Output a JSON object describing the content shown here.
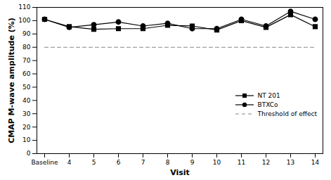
{
  "chart_data": {
    "type": "line",
    "x_label": "Visit",
    "y_label": "CMAP M-wave amplitude (%)",
    "categories": [
      "Baseline",
      "4",
      "5",
      "6",
      "7",
      "8",
      "9",
      "10",
      "11",
      "12",
      "13",
      "14"
    ],
    "series": [
      {
        "name": "NT 201",
        "color": "#000000",
        "marker": "square",
        "line_style": "solid",
        "values": [
          101,
          95.5,
          93.5,
          94,
          94,
          96.5,
          96,
          93,
          100,
          95,
          104.5,
          95.5
        ]
      },
      {
        "name": "BTXCo",
        "color": "#000000",
        "marker": "circle",
        "line_style": "solid",
        "values": [
          101,
          95,
          97,
          99,
          96,
          98,
          94,
          94,
          101,
          96,
          107,
          101
        ]
      },
      {
        "name": "Threshold of effect",
        "color": "#888888",
        "marker": "none",
        "line_style": "dashed",
        "values": [
          80,
          80,
          80,
          80,
          80,
          80,
          80,
          80,
          80,
          80,
          80,
          80
        ]
      }
    ],
    "ylim": [
      0,
      110
    ],
    "yticks": [
      0,
      10,
      20,
      30,
      40,
      50,
      60,
      70,
      80,
      90,
      100,
      110
    ],
    "grid": false,
    "legend": "right"
  }
}
